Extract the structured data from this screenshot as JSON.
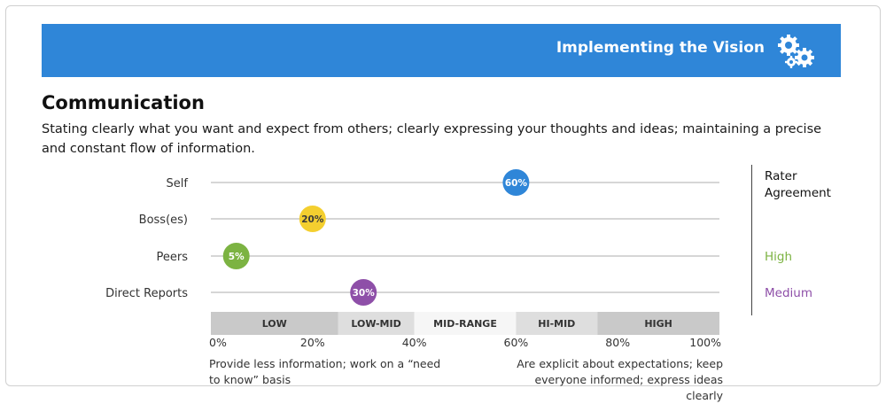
{
  "banner": {
    "title": "Implementing the Vision",
    "icon": "gears-icon",
    "color": "#2f86d8"
  },
  "heading": "Communication",
  "description": "Stating clearly what you want and expect from others; clearly expressing your thoughts and ideas; maintaining a precise and constant flow of information.",
  "rater": {
    "title": "Rater Agreement",
    "values": [
      {
        "row": "Peers",
        "label": "High",
        "color": "#7cb342"
      },
      {
        "row": "Direct Reports",
        "label": "Medium",
        "color": "#8e4fa8"
      }
    ]
  },
  "footnotes": {
    "left": "Provide less information; work on a “need to know” basis",
    "right": "Are explicit about expectations; keep everyone informed; express ideas clearly"
  },
  "chart_data": {
    "type": "scatter",
    "title": "",
    "xlim": [
      0,
      100
    ],
    "x_ticks": [
      "0%",
      "20%",
      "40%",
      "60%",
      "80%",
      "100%"
    ],
    "categories": [
      "Self",
      "Boss(es)",
      "Peers",
      "Direct Reports"
    ],
    "values": [
      60,
      20,
      5,
      30
    ],
    "point_labels": [
      "60%",
      "20%",
      "5%",
      "30%"
    ],
    "point_colors": [
      "#2f86d8",
      "#f4cf2f",
      "#7cb342",
      "#8e4fa8"
    ],
    "bands": [
      {
        "label": "LOW",
        "from": 0,
        "to": 25,
        "color": "#c9c9c9"
      },
      {
        "label": "LOW-MID",
        "from": 25,
        "to": 40,
        "color": "#dedede"
      },
      {
        "label": "MID-RANGE",
        "from": 40,
        "to": 60,
        "color": "#f6f6f6"
      },
      {
        "label": "HI-MID",
        "from": 60,
        "to": 76,
        "color": "#dedede"
      },
      {
        "label": "HIGH",
        "from": 76,
        "to": 100,
        "color": "#c9c9c9"
      }
    ]
  }
}
